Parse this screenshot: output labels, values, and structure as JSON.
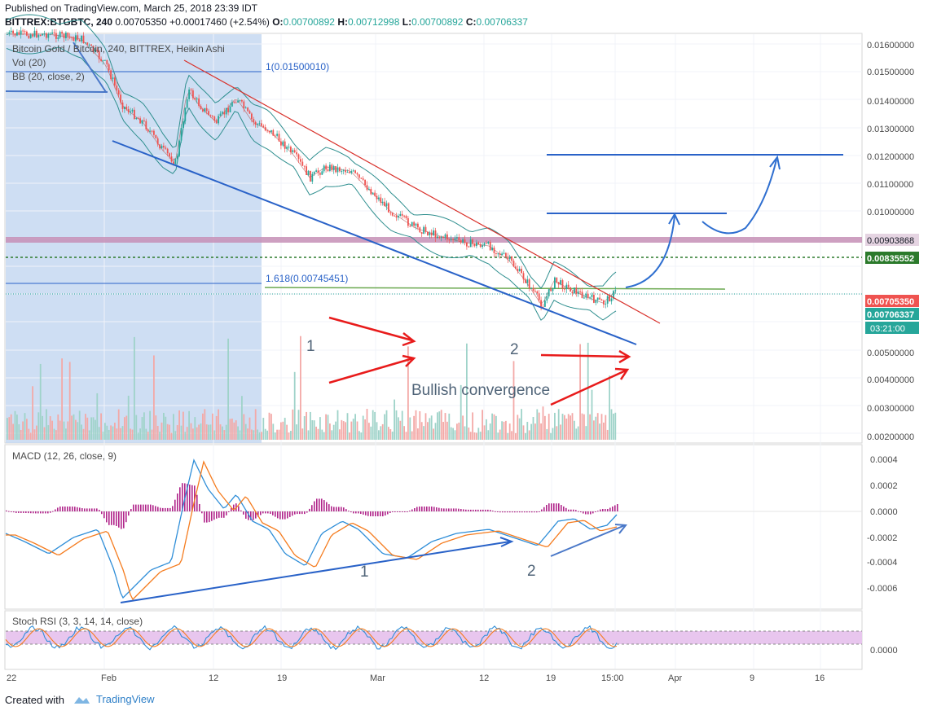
{
  "header": {
    "published": "Published on TradingView.com, March 25, 2018 23:39 IDT",
    "symbol": "BITTREX:BTGBTC, 240",
    "last": "0.00705350",
    "change": "+0.00017460 (+2.54%)",
    "open_label": "O:",
    "open": "0.00700892",
    "high_label": "H:",
    "high": "0.00712998",
    "low_label": "L:",
    "low": "0.00700892",
    "close_label": "C:",
    "close": "0.00706337"
  },
  "legend": {
    "title": "Bitcoin Gold / Bitcoin, 240, BITTREX, Heikin Ashi",
    "vol": "Vol (20)",
    "bb": "BB (20, close, 2)",
    "macd": "MACD (12, 26, close, 9)",
    "stoch": "Stoch RSI (3, 3, 14, 14, close)"
  },
  "annotations": {
    "fib1": "1(0.01500010)",
    "fib1618": "1.618(0.00745451)",
    "wave1": "1",
    "wave2": "2",
    "bullish": "Bullish convergence",
    "macd_wave1": "1",
    "macd_wave2": "2"
  },
  "price_axis": {
    "ticks": [
      "0.01600000",
      "0.01500000",
      "0.01400000",
      "0.01300000",
      "0.01200000",
      "0.01100000",
      "0.01000000",
      "0.00903868",
      "0.00835552",
      "0.00705350",
      "0.00706337",
      "03:21:00",
      "0.00500000",
      "0.00400000",
      "0.00300000",
      "0.00200000"
    ]
  },
  "macd_axis": {
    "ticks": [
      "0.0004",
      "0.0002",
      "0.0000",
      "-0.0002",
      "-0.0004",
      "-0.0006"
    ]
  },
  "stoch_axis": {
    "ticks": [
      "0.0000"
    ]
  },
  "time_axis": {
    "ticks": [
      "22",
      "Feb",
      "12",
      "19",
      "Mar",
      "12",
      "19",
      "15:00",
      "Apr",
      "9",
      "16"
    ]
  },
  "footer": {
    "created": "Created with",
    "brand": "TradingView"
  },
  "colors": {
    "up": "#26a69a",
    "down": "#ef5350",
    "trend_blue": "#2962c8",
    "arrow_red": "#e81b1b",
    "resistance_pink": "#c58fb6",
    "dotted_green": "#2b7a2b",
    "bb_band": "#2f8f8f",
    "stoch_fill": "#e8c6ee"
  },
  "chart_data": {
    "type": "candlestick",
    "title": "Bitcoin Gold / Bitcoin, 240, BITTREX, Heikin Ashi",
    "x": [
      "22",
      "Feb",
      "12",
      "19",
      "Mar",
      "12",
      "19",
      "15:00"
    ],
    "price_close_approx": [
      0.0164,
      0.016,
      0.0145,
      0.013,
      0.012,
      0.0093,
      0.008,
      0.00706
    ],
    "ylim": [
      0.0019,
      0.0165
    ],
    "horizontal_levels": [
      0.0150001,
      0.012,
      0.01,
      0.00903868,
      0.00835552,
      0.00745451
    ],
    "macd": {
      "ylim": [
        -0.0007,
        0.00045
      ],
      "macd_min": -0.00068,
      "macd_max": 0.00042
    },
    "stoch_rsi": {
      "band": [
        20,
        80
      ]
    }
  }
}
